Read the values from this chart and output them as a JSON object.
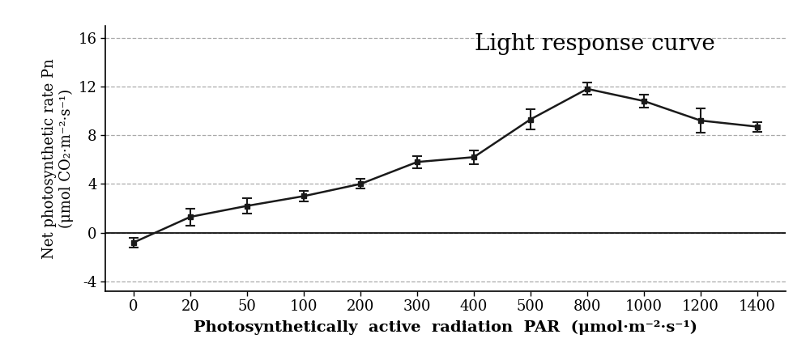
{
  "x_labels": [
    "0",
    "20",
    "50",
    "100",
    "200",
    "300",
    "400",
    "500",
    "800",
    "1000",
    "1200",
    "1400"
  ],
  "x_indices": [
    0,
    1,
    2,
    3,
    4,
    5,
    6,
    7,
    8,
    9,
    10,
    11
  ],
  "y": [
    -0.8,
    1.3,
    2.2,
    3.0,
    4.0,
    5.8,
    6.2,
    9.3,
    11.8,
    10.8,
    9.2,
    8.7
  ],
  "yerr": [
    0.4,
    0.7,
    0.65,
    0.45,
    0.4,
    0.5,
    0.55,
    0.85,
    0.5,
    0.55,
    1.0,
    0.4
  ],
  "title": "Light response curve",
  "xlabel": "Photosynthetically  active  radiation  PAR  (μmol·m⁻²·s⁻¹)",
  "ylabel": "Net photosynthetic rate Pn\n(μmol CO₂·m⁻²·s⁻¹)",
  "yticks": [
    -4,
    0,
    4,
    8,
    12,
    16
  ],
  "ylim": [
    -4.8,
    17.0
  ],
  "xlim": [
    -0.5,
    11.5
  ],
  "line_color": "#1a1a1a",
  "marker": "s",
  "marker_color": "#1a1a1a",
  "marker_size": 5,
  "line_width": 1.8,
  "grid_color": "#aaaaaa",
  "grid_style": "--",
  "title_fontsize": 20,
  "label_fontsize": 14,
  "tick_fontsize": 13,
  "ylabel_fontsize": 13
}
